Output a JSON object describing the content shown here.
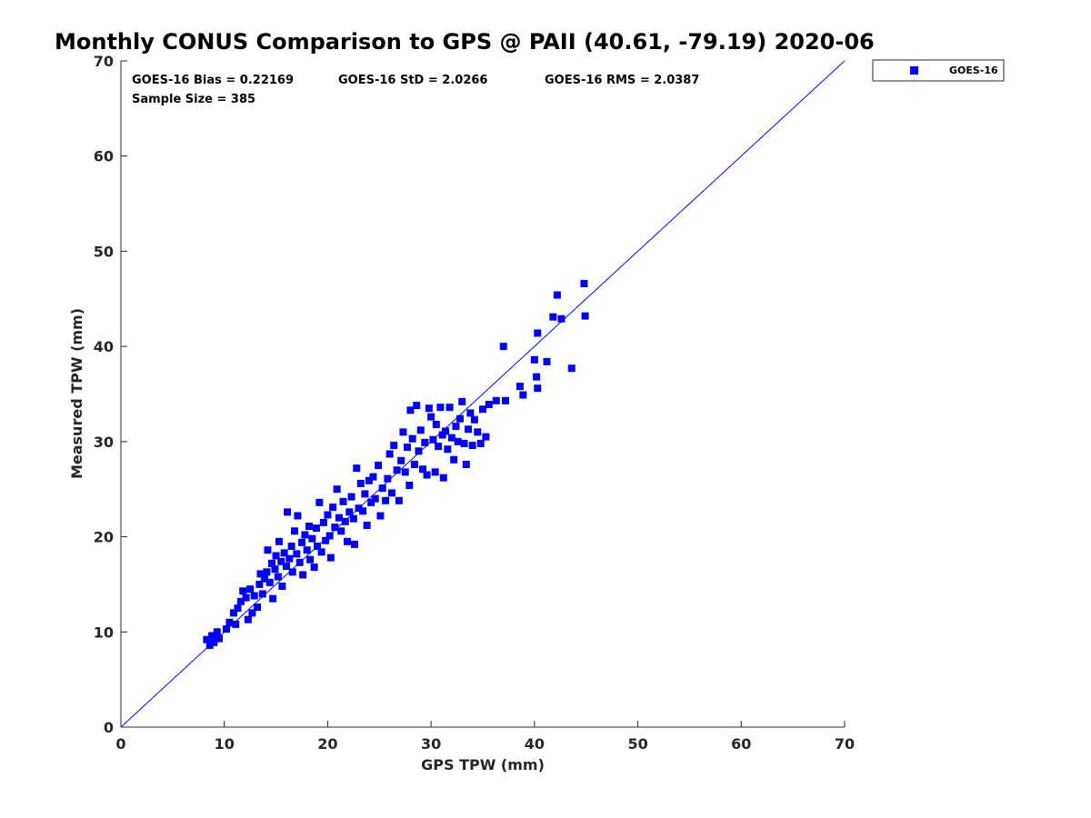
{
  "chart_data": {
    "type": "scatter",
    "title": "Monthly CONUS Comparison to GPS @ PAII (40.61, -79.19) 2020-06",
    "xlabel": "GPS TPW (mm)",
    "ylabel": "Measured TPW (mm)",
    "xlim": [
      0,
      70
    ],
    "ylim": [
      0,
      70
    ],
    "xticks": [
      "0",
      "10",
      "20",
      "30",
      "40",
      "50",
      "60",
      "70"
    ],
    "yticks": [
      "0",
      "10",
      "20",
      "30",
      "40",
      "50",
      "60",
      "70"
    ],
    "grid": false,
    "legend_position": "outside top-right",
    "reference_line": {
      "from": [
        0,
        0
      ],
      "to": [
        70,
        70
      ],
      "color": "#0000ff"
    },
    "stats": {
      "bias": "GOES-16 Bias = 0.22169",
      "std": "GOES-16 StD = 2.0266",
      "rms": "GOES-16 RMS = 2.0387",
      "sample": "Sample Size = 385"
    },
    "series": [
      {
        "name": "GOES-16",
        "color": "#0000ff",
        "marker": "square",
        "points": [
          [
            8.3,
            9.2
          ],
          [
            8.6,
            8.6
          ],
          [
            8.8,
            9.6
          ],
          [
            9.0,
            8.9
          ],
          [
            9.3,
            10.0
          ],
          [
            9.5,
            9.3
          ],
          [
            10.2,
            10.3
          ],
          [
            10.5,
            11.0
          ],
          [
            10.9,
            12.0
          ],
          [
            11.1,
            10.8
          ],
          [
            11.3,
            12.5
          ],
          [
            11.6,
            13.2
          ],
          [
            11.8,
            14.3
          ],
          [
            12.1,
            13.6
          ],
          [
            12.3,
            11.3
          ],
          [
            12.5,
            14.5
          ],
          [
            12.7,
            12.0
          ],
          [
            12.9,
            13.8
          ],
          [
            13.2,
            12.6
          ],
          [
            13.4,
            15.0
          ],
          [
            13.5,
            16.1
          ],
          [
            13.7,
            14.0
          ],
          [
            13.9,
            15.6
          ],
          [
            14.1,
            16.3
          ],
          [
            14.2,
            18.6
          ],
          [
            14.4,
            15.2
          ],
          [
            14.6,
            17.2
          ],
          [
            14.7,
            13.5
          ],
          [
            14.9,
            16.6
          ],
          [
            15.0,
            18.0
          ],
          [
            15.2,
            15.8
          ],
          [
            15.3,
            19.5
          ],
          [
            15.5,
            17.4
          ],
          [
            15.6,
            14.8
          ],
          [
            15.8,
            18.3
          ],
          [
            16.0,
            16.9
          ],
          [
            16.1,
            22.6
          ],
          [
            16.3,
            17.7
          ],
          [
            16.5,
            19.0
          ],
          [
            16.6,
            16.3
          ],
          [
            16.8,
            20.6
          ],
          [
            17.0,
            18.2
          ],
          [
            17.1,
            22.2
          ],
          [
            17.3,
            17.3
          ],
          [
            17.5,
            19.4
          ],
          [
            17.6,
            16.0
          ],
          [
            17.8,
            20.2
          ],
          [
            18.0,
            18.6
          ],
          [
            18.2,
            21.1
          ],
          [
            18.3,
            17.6
          ],
          [
            18.5,
            19.8
          ],
          [
            18.7,
            16.8
          ],
          [
            18.9,
            20.9
          ],
          [
            19.0,
            19.0
          ],
          [
            19.2,
            23.6
          ],
          [
            19.4,
            18.4
          ],
          [
            19.6,
            21.5
          ],
          [
            19.8,
            19.6
          ],
          [
            20.0,
            22.3
          ],
          [
            20.2,
            20.1
          ],
          [
            20.3,
            17.8
          ],
          [
            20.5,
            23.1
          ],
          [
            20.7,
            21.0
          ],
          [
            20.9,
            25.0
          ],
          [
            21.1,
            22.0
          ],
          [
            21.3,
            20.6
          ],
          [
            21.5,
            23.7
          ],
          [
            21.7,
            21.6
          ],
          [
            21.9,
            19.5
          ],
          [
            22.1,
            22.6
          ],
          [
            22.3,
            24.2
          ],
          [
            22.5,
            21.9
          ],
          [
            22.6,
            19.2
          ],
          [
            22.8,
            27.2
          ],
          [
            23.0,
            23.0
          ],
          [
            23.2,
            25.6
          ],
          [
            23.4,
            22.7
          ],
          [
            23.6,
            24.5
          ],
          [
            23.8,
            21.2
          ],
          [
            24.0,
            25.9
          ],
          [
            24.2,
            23.6
          ],
          [
            24.4,
            26.3
          ],
          [
            24.6,
            24.0
          ],
          [
            24.9,
            27.5
          ],
          [
            25.1,
            22.2
          ],
          [
            25.3,
            25.1
          ],
          [
            25.6,
            23.8
          ],
          [
            25.8,
            26.1
          ],
          [
            26.0,
            28.7
          ],
          [
            26.2,
            24.6
          ],
          [
            26.4,
            29.6
          ],
          [
            26.7,
            27.0
          ],
          [
            26.9,
            23.8
          ],
          [
            27.1,
            28.0
          ],
          [
            27.3,
            31.0
          ],
          [
            27.5,
            26.8
          ],
          [
            27.7,
            29.4
          ],
          [
            27.9,
            25.4
          ],
          [
            28.0,
            33.3
          ],
          [
            28.2,
            30.3
          ],
          [
            28.4,
            27.6
          ],
          [
            28.6,
            33.8
          ],
          [
            28.8,
            29.0
          ],
          [
            29.0,
            31.2
          ],
          [
            29.2,
            27.1
          ],
          [
            29.4,
            29.9
          ],
          [
            29.6,
            26.5
          ],
          [
            29.8,
            33.5
          ],
          [
            30.0,
            32.6
          ],
          [
            30.2,
            30.2
          ],
          [
            30.4,
            26.8
          ],
          [
            30.5,
            31.8
          ],
          [
            30.7,
            29.5
          ],
          [
            30.9,
            33.6
          ],
          [
            31.1,
            30.7
          ],
          [
            31.2,
            26.2
          ],
          [
            31.4,
            31.1
          ],
          [
            31.6,
            29.2
          ],
          [
            31.8,
            33.6
          ],
          [
            32.0,
            30.4
          ],
          [
            32.2,
            28.1
          ],
          [
            32.4,
            31.6
          ],
          [
            32.6,
            30.0
          ],
          [
            32.8,
            32.4
          ],
          [
            33.0,
            34.2
          ],
          [
            33.2,
            29.8
          ],
          [
            33.4,
            27.6
          ],
          [
            33.6,
            31.3
          ],
          [
            33.8,
            33.0
          ],
          [
            34.0,
            29.6
          ],
          [
            34.2,
            32.3
          ],
          [
            34.5,
            31.0
          ],
          [
            34.8,
            29.8
          ],
          [
            35.0,
            33.4
          ],
          [
            35.3,
            30.5
          ],
          [
            35.6,
            33.9
          ],
          [
            36.3,
            34.3
          ],
          [
            37.0,
            40.0
          ],
          [
            37.2,
            34.3
          ],
          [
            38.6,
            35.8
          ],
          [
            38.9,
            34.9
          ],
          [
            40.0,
            38.6
          ],
          [
            40.2,
            36.8
          ],
          [
            40.3,
            41.4
          ],
          [
            40.3,
            35.6
          ],
          [
            41.2,
            38.4
          ],
          [
            41.8,
            43.1
          ],
          [
            42.2,
            45.4
          ],
          [
            42.6,
            42.9
          ],
          [
            43.6,
            37.7
          ],
          [
            44.8,
            46.6
          ],
          [
            44.9,
            43.2
          ]
        ]
      }
    ]
  }
}
